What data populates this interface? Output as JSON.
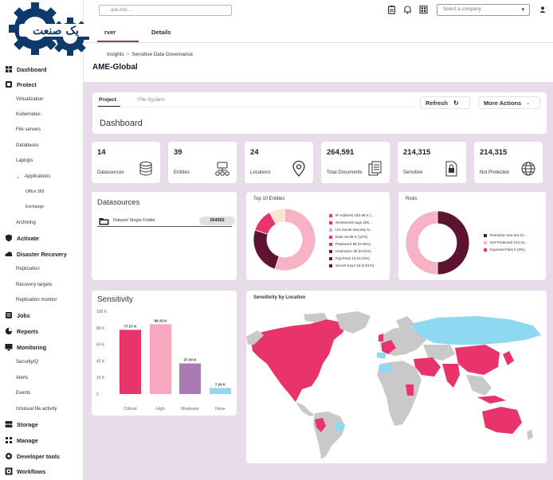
{
  "topbar": {
    "search_placeholder": "ask Aris ...",
    "company_placeholder": "Select a company"
  },
  "logo_text": "یک صنعت",
  "tabs": [
    {
      "label": "Overview",
      "shown": "rver"
    },
    {
      "label": "Details",
      "shown": "Details"
    }
  ],
  "breadcrumb": {
    "parent": "Insights",
    "current": "Sensitive Data Governance"
  },
  "page_title": "AME-Global",
  "sidebar": {
    "items": [
      {
        "label": "Dashboard",
        "level": "main",
        "icon": "dashboard-icon"
      },
      {
        "label": "Protect",
        "level": "main",
        "icon": "protect-icon"
      },
      {
        "label": "Virtualization",
        "level": "sub"
      },
      {
        "label": "Kubernetes",
        "level": "sub"
      },
      {
        "label": "File servers",
        "level": "sub"
      },
      {
        "label": "Databases",
        "level": "sub"
      },
      {
        "label": "Laptops",
        "level": "sub"
      },
      {
        "label": "Applications",
        "level": "sub",
        "expanded": true
      },
      {
        "label": "Office 365",
        "level": "sub2"
      },
      {
        "label": "Exchange",
        "level": "sub2"
      },
      {
        "label": "Archiving",
        "level": "sub"
      },
      {
        "label": "Activate",
        "level": "main",
        "icon": "shield-icon"
      },
      {
        "label": "Disaster Recovery",
        "level": "main",
        "icon": "cloud-icon"
      },
      {
        "label": "Replication",
        "level": "sub"
      },
      {
        "label": "Recovery targets",
        "level": "sub"
      },
      {
        "label": "Replication monitor",
        "level": "sub"
      },
      {
        "label": "Jobs",
        "level": "main",
        "icon": "jobs-icon"
      },
      {
        "label": "Reports",
        "level": "main",
        "icon": "reports-icon"
      },
      {
        "label": "Monitoring",
        "level": "main",
        "icon": "monitor-icon"
      },
      {
        "label": "SecurityIQ",
        "level": "sub"
      },
      {
        "label": "Alerts",
        "level": "sub"
      },
      {
        "label": "Events",
        "level": "sub"
      },
      {
        "label": "Unusual file activity",
        "level": "sub"
      },
      {
        "label": "Storage",
        "level": "main",
        "icon": "storage-icon"
      },
      {
        "label": "Manage",
        "level": "main",
        "icon": "manage-icon"
      },
      {
        "label": "Developer tools",
        "level": "main",
        "icon": "gear-icon"
      },
      {
        "label": "Workflows",
        "level": "main",
        "icon": "workflows-icon"
      }
    ]
  },
  "dashboard": {
    "subtabs": [
      "Project",
      "File System"
    ],
    "title": "Dashboard",
    "refresh_label": "Refresh",
    "more_actions_label": "More Actions"
  },
  "stats": [
    {
      "value": "14",
      "label": "Datasources",
      "icon": "database-icon"
    },
    {
      "value": "39",
      "label": "Entities",
      "icon": "entities-icon"
    },
    {
      "value": "24",
      "label": "Locations",
      "icon": "location-pin-icon"
    },
    {
      "value": "264,591",
      "label": "Total Documents",
      "icon": "documents-icon"
    },
    {
      "value": "214,315",
      "label": "Sensitive",
      "icon": "sensitive-doc-icon"
    },
    {
      "value": "214,315",
      "label": "Not Protected",
      "icon": "globe-icon"
    }
  ],
  "datasources": {
    "title": "Datasources",
    "rows": [
      {
        "name": "Dataset Single Folder",
        "count": "264592"
      }
    ]
  },
  "entities": {
    "title": "Top 10 Entities",
    "legend": [
      {
        "label": "IP Address 183.98 K (...",
        "color": "#e8336b"
      },
      {
        "label": "Sentiments tags 105...",
        "color": "#e8336b"
      },
      {
        "label": "US Social Security N...",
        "color": "#f5a3be"
      },
      {
        "label": "Date 26.89 K (12%)",
        "color": "#e8336b"
      },
      {
        "label": "Password 88 (0.02%)",
        "color": "#e8336b"
      },
      {
        "label": "Hostname 38 (0.01%)",
        "color": "#6b1a35"
      },
      {
        "label": "Org Pass 19 (0.01%)",
        "color": "#6b1a35"
      },
      {
        "label": "Secret Keys 16 (0.01%)",
        "color": "#6b1a35"
      }
    ],
    "donut": [
      {
        "value": 0.55,
        "color": "#f7b3c6"
      },
      {
        "value": 0.25,
        "color": "#5c1430"
      },
      {
        "value": 0.12,
        "color": "#e8336b"
      },
      {
        "value": 0.08,
        "color": "#fbe4d0"
      }
    ]
  },
  "risks": {
    "title": "Risks",
    "legend": [
      {
        "label": "Retention Not Set 21...",
        "color": "#5c1430"
      },
      {
        "label": "Not Protected 214,31...",
        "color": "#f7b3c6"
      },
      {
        "label": "Exposed Files 0 (0%)",
        "color": "#e8336b"
      }
    ],
    "donut": [
      {
        "value": 0.5,
        "color": "#5c1430"
      },
      {
        "value": 0.5,
        "color": "#f7b3c6"
      }
    ]
  },
  "sensitivity": {
    "title": "Sensitivity",
    "chart_data": {
      "type": "bar",
      "categories": [
        "Critical",
        "High",
        "Moderate",
        "None"
      ],
      "values": [
        77570,
        84330,
        37000,
        7260
      ],
      "value_labels": [
        "77.57 K",
        "84.33 K",
        "37.00 K",
        "7.26 K"
      ],
      "colors": [
        "#e8336b",
        "#f7a8be",
        "#a97bb5",
        "#8ed8f2"
      ],
      "ylim": [
        0,
        100000
      ],
      "yticks": [
        "100 K",
        "80 K",
        "60 K",
        "40 K",
        "20 K",
        "0"
      ]
    }
  },
  "location": {
    "title": "Sensitivity by Location"
  }
}
